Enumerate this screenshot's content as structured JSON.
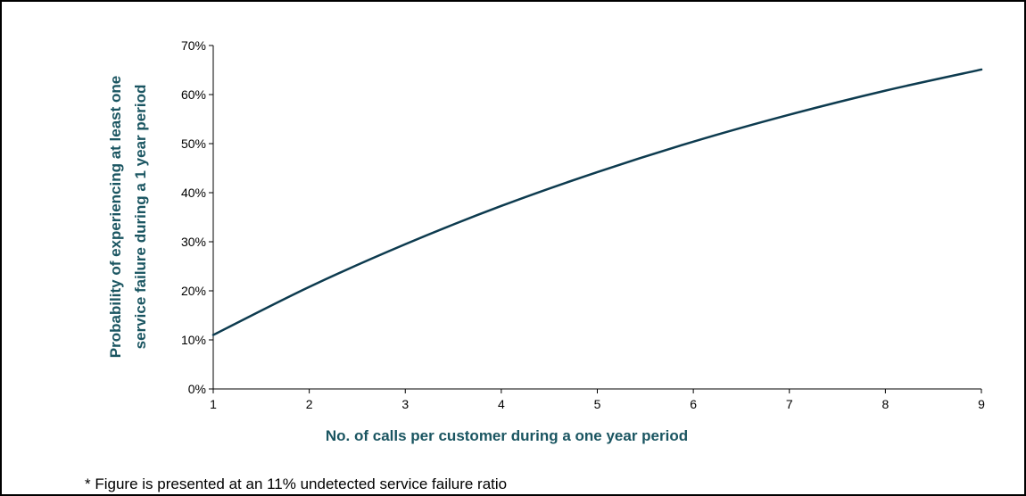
{
  "chart_data": {
    "type": "line",
    "title": "",
    "xlabel": "No. of calls per customer during a one year period",
    "ylabel_lines": [
      "Probability of experiencing at least one",
      "service failure during a 1 year period"
    ],
    "xlim": [
      1,
      9
    ],
    "ylim": [
      0,
      0.7
    ],
    "x_ticks": [
      "1",
      "2",
      "3",
      "4",
      "5",
      "6",
      "7",
      "8",
      "9"
    ],
    "y_ticks": [
      "0%",
      "10%",
      "20%",
      "30%",
      "40%",
      "50%",
      "60%",
      "70%"
    ],
    "grid": false,
    "legend": "none",
    "series": [
      {
        "color": "#0d3b4f",
        "x": [
          1,
          2,
          3,
          4,
          5,
          6,
          7,
          8,
          9
        ],
        "values": [
          0.11,
          0.208,
          0.295,
          0.373,
          0.442,
          0.504,
          0.559,
          0.608,
          0.651
        ]
      }
    ]
  },
  "footnote": "* Figure is presented at an 11% undetected service failure ratio",
  "colors": {
    "axis_label": "#1a5561",
    "line": "#0d3b4f",
    "axis": "#000000"
  }
}
